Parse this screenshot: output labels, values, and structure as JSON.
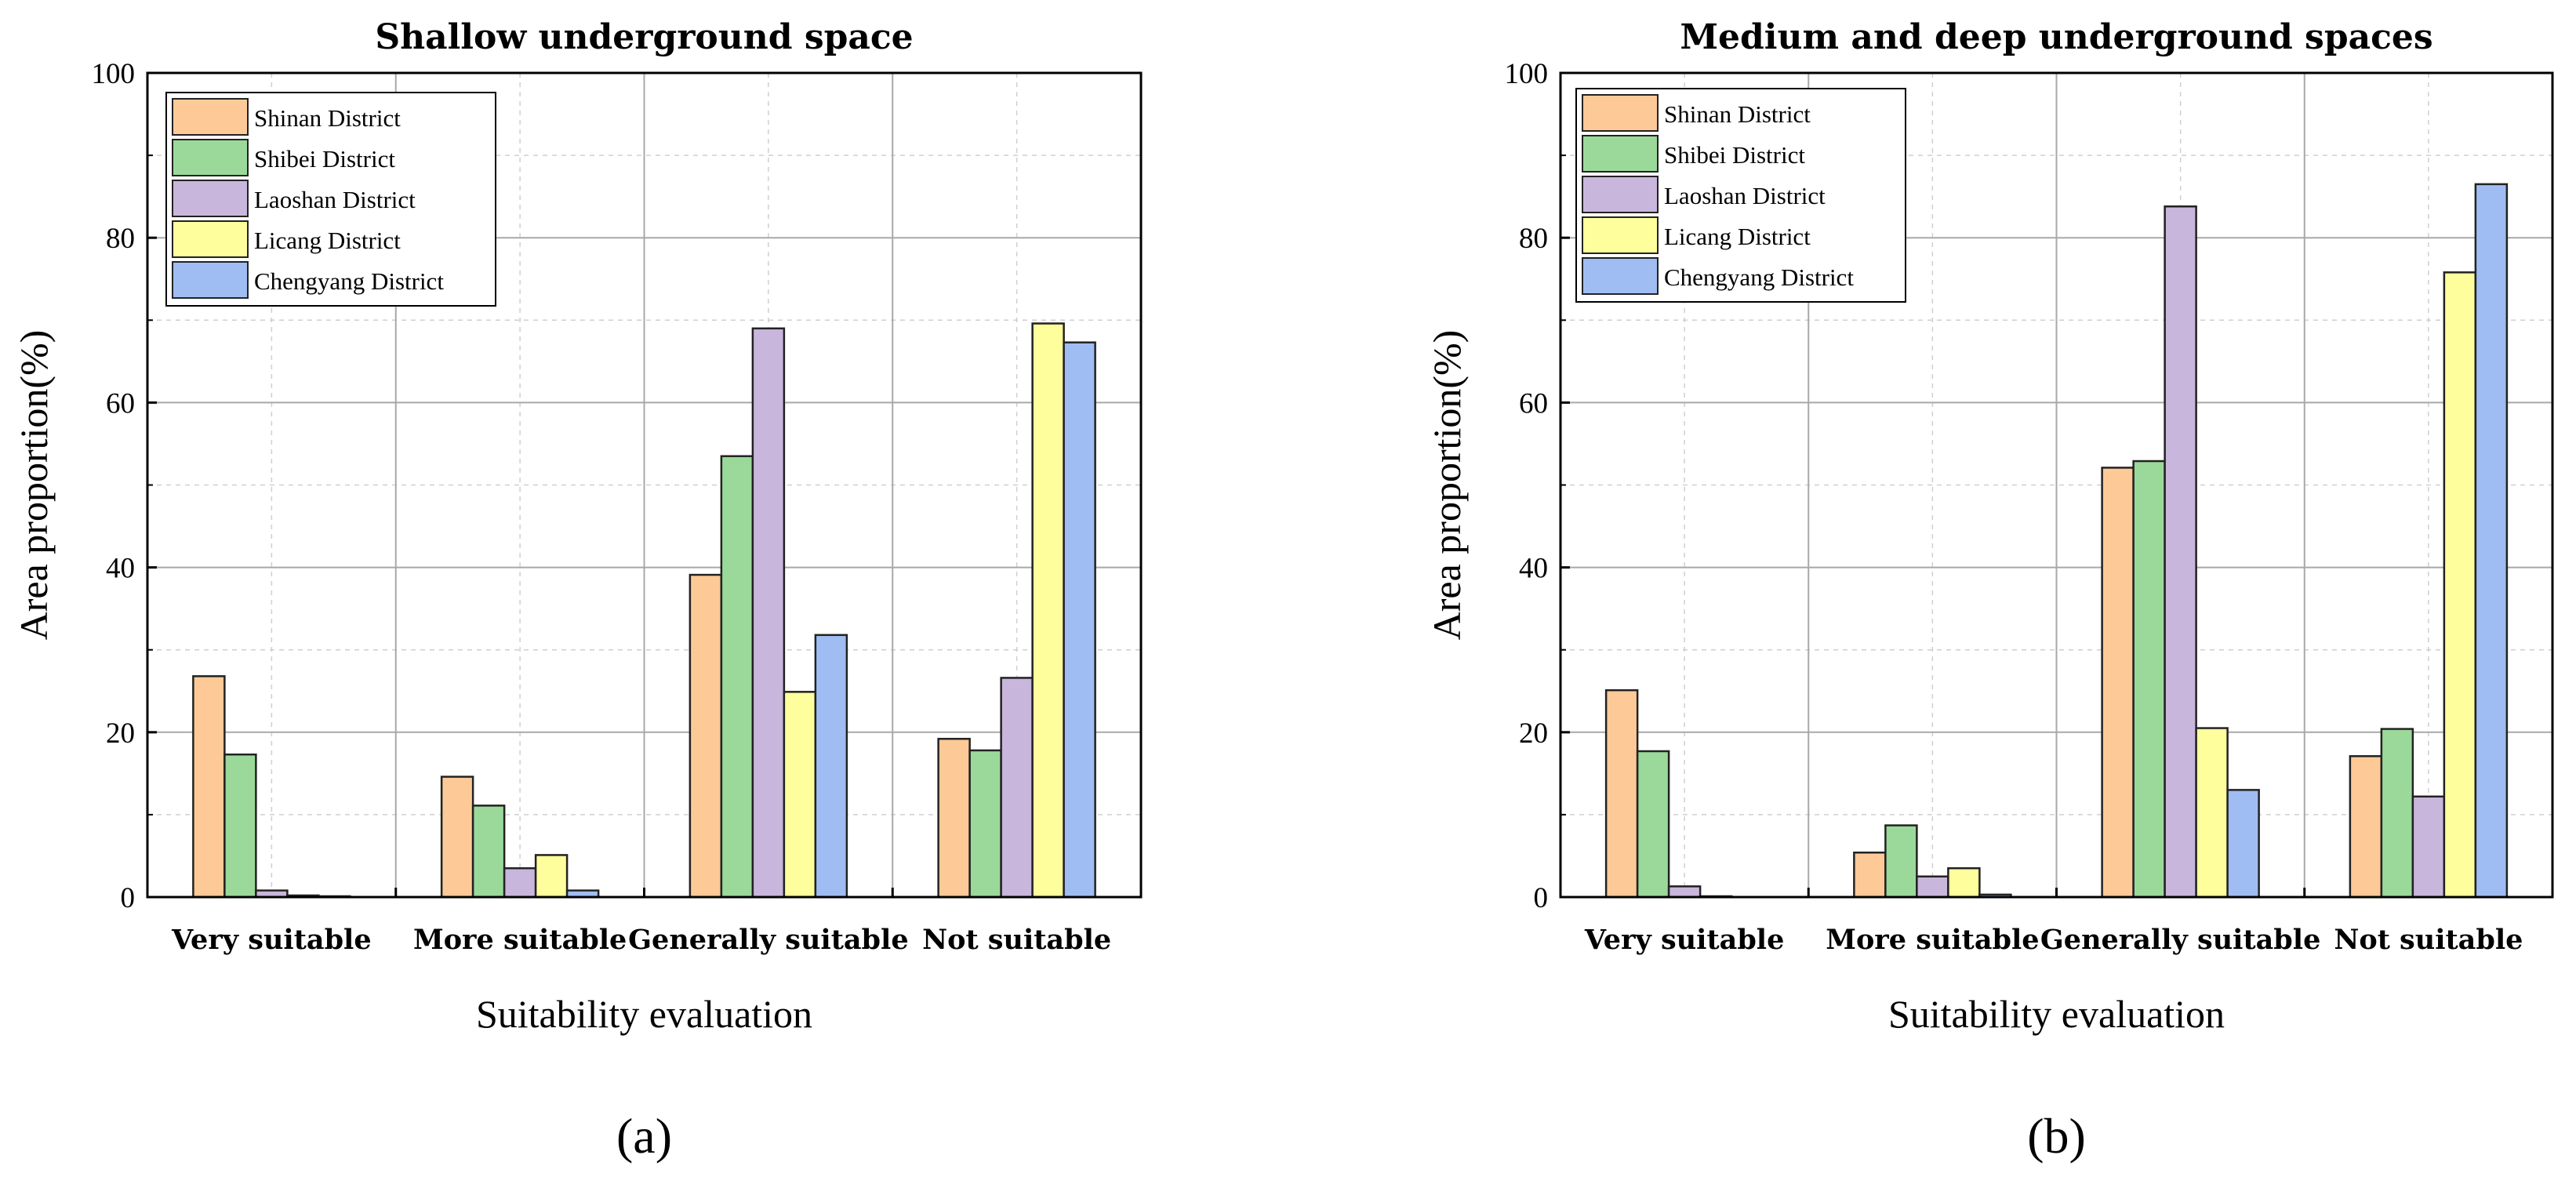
{
  "chart_data": [
    {
      "type": "bar",
      "title": "Shallow underground space",
      "xlabel": "Suitability evaluation",
      "ylabel": "Area proportion(%)",
      "ylim": [
        0,
        100
      ],
      "yticks": [
        "0",
        "20",
        "40",
        "60",
        "80",
        "100"
      ],
      "grid": true,
      "legend_position": "top-left",
      "panel_label": "(a)",
      "categories": [
        "Very suitable",
        "More suitable",
        "Generally suitable",
        "Not suitable"
      ],
      "series": [
        {
          "name": "Shinan District",
          "color": "#fdca97",
          "values": [
            26.8,
            14.6,
            39.1,
            19.2
          ]
        },
        {
          "name": "Shibei District",
          "color": "#9ad99a",
          "values": [
            17.3,
            11.1,
            53.5,
            17.8
          ]
        },
        {
          "name": "Laoshan District",
          "color": "#c9b6dc",
          "values": [
            0.8,
            3.5,
            69.0,
            26.6
          ]
        },
        {
          "name": "Licang District",
          "color": "#fefe9c",
          "values": [
            0.2,
            5.1,
            24.9,
            69.6
          ]
        },
        {
          "name": "Chengyang District",
          "color": "#9fbdf2",
          "values": [
            0.1,
            0.8,
            31.8,
            67.3
          ]
        }
      ]
    },
    {
      "type": "bar",
      "title": "Medium and deep underground spaces",
      "xlabel": "Suitability evaluation",
      "ylabel": "Area proportion(%)",
      "ylim": [
        0,
        100
      ],
      "yticks": [
        "0",
        "20",
        "40",
        "60",
        "80",
        "100"
      ],
      "grid": true,
      "legend_position": "top-left",
      "panel_label": "(b)",
      "categories": [
        "Very suitable",
        "More suitable",
        "Generally suitable",
        "Not suitable"
      ],
      "series": [
        {
          "name": "Shinan District",
          "color": "#fdca97",
          "values": [
            25.1,
            5.4,
            52.1,
            17.1
          ]
        },
        {
          "name": "Shibei District",
          "color": "#9ad99a",
          "values": [
            17.7,
            8.7,
            52.9,
            20.4
          ]
        },
        {
          "name": "Laoshan District",
          "color": "#c9b6dc",
          "values": [
            1.3,
            2.5,
            83.8,
            12.2
          ]
        },
        {
          "name": "Licang District",
          "color": "#fefe9c",
          "values": [
            0.1,
            3.5,
            20.5,
            75.8
          ]
        },
        {
          "name": "Chengyang District",
          "color": "#9fbdf2",
          "values": [
            0.0,
            0.3,
            13.0,
            86.5
          ]
        }
      ]
    }
  ]
}
